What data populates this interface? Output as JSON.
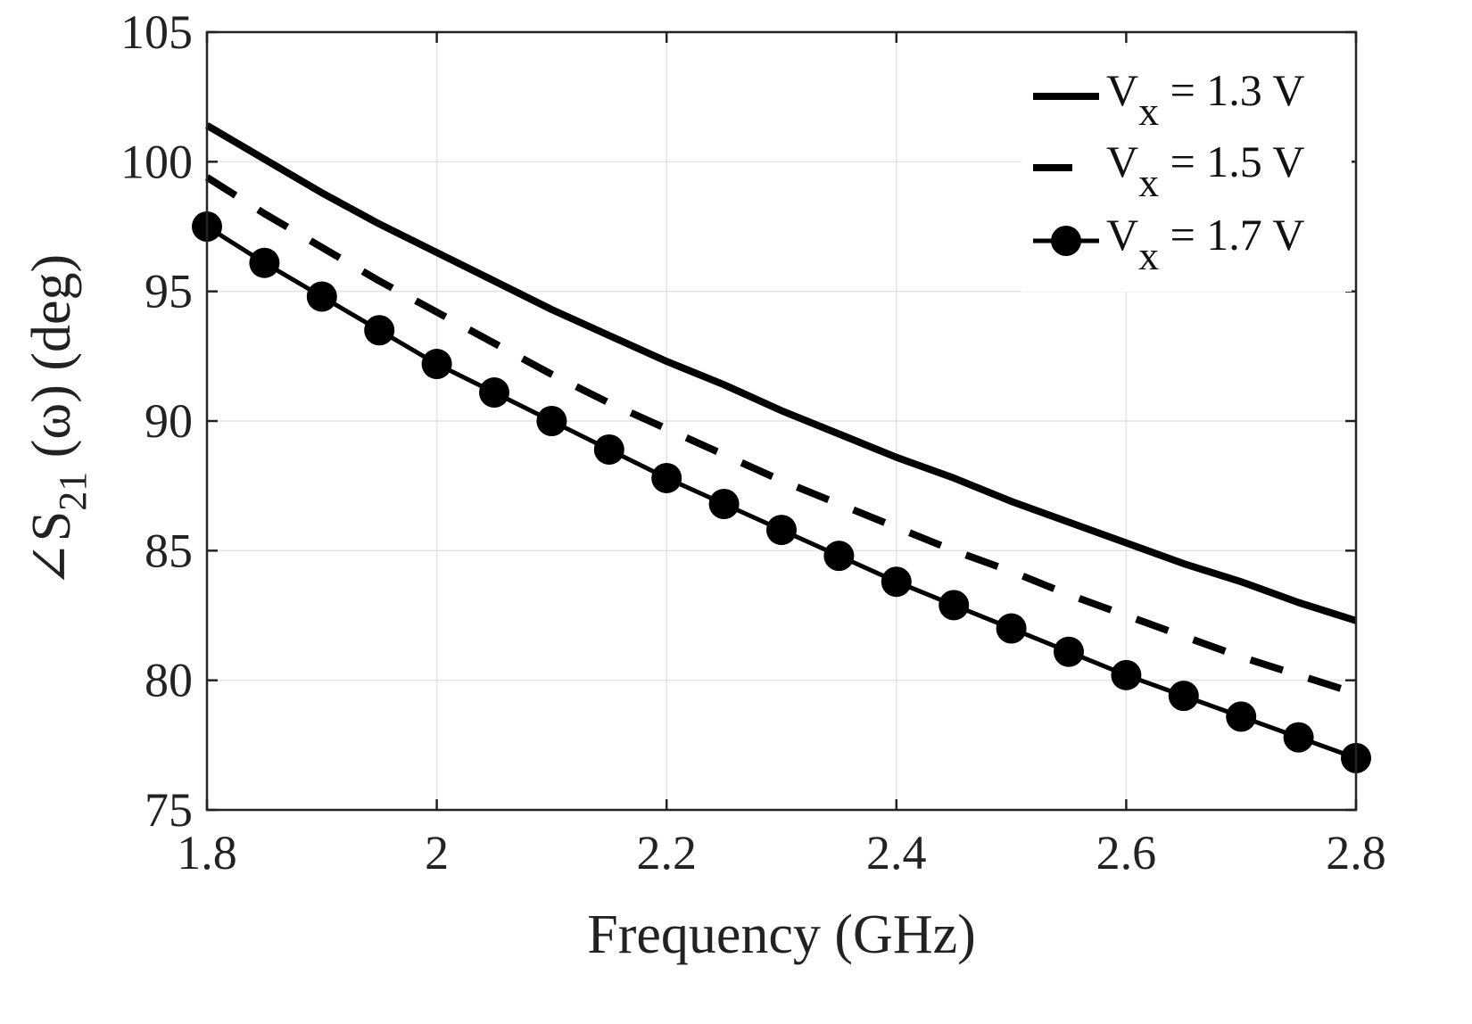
{
  "chart_data": {
    "type": "line",
    "title": "",
    "xlabel": "Frequency (GHz)",
    "ylabel": "∠S21 (ω) (deg)",
    "ylabel_parts": {
      "angle": "∠S",
      "subscript": "21",
      "rest": " (ω) (deg)"
    },
    "xlim": [
      1.8,
      2.8
    ],
    "ylim": [
      75,
      105
    ],
    "xticks": [
      1.8,
      2,
      2.2,
      2.4,
      2.6,
      2.8
    ],
    "xtick_labels": [
      "1.8",
      "2",
      "2.2",
      "2.4",
      "2.6",
      "2.8"
    ],
    "yticks": [
      75,
      80,
      85,
      90,
      95,
      100,
      105
    ],
    "ytick_labels": [
      "75",
      "80",
      "85",
      "90",
      "95",
      "100",
      "105"
    ],
    "grid": true,
    "legend_position": "top-right",
    "x": [
      1.8,
      1.85,
      1.9,
      1.95,
      2.0,
      2.05,
      2.1,
      2.15,
      2.2,
      2.25,
      2.3,
      2.35,
      2.4,
      2.45,
      2.5,
      2.55,
      2.6,
      2.65,
      2.7,
      2.75,
      2.8
    ],
    "series": [
      {
        "name": "Vx = 1.3 V",
        "legend": {
          "base": "V",
          "sub": "x",
          "rest": " = 1.3 V"
        },
        "style": "solid",
        "values": [
          101.4,
          100.1,
          98.8,
          97.6,
          96.5,
          95.4,
          94.3,
          93.3,
          92.3,
          91.4,
          90.4,
          89.5,
          88.6,
          87.8,
          86.9,
          86.1,
          85.3,
          84.5,
          83.8,
          83.0,
          82.3
        ]
      },
      {
        "name": "Vx = 1.5 V",
        "legend": {
          "base": "V",
          "sub": "x",
          "rest": " = 1.5 V"
        },
        "style": "dashed",
        "values": [
          99.4,
          98.0,
          96.7,
          95.4,
          94.2,
          93.0,
          91.8,
          90.7,
          89.7,
          88.7,
          87.7,
          86.8,
          85.9,
          85.0,
          84.2,
          83.3,
          82.5,
          81.7,
          80.9,
          80.2,
          79.5
        ]
      },
      {
        "name": "Vx = 1.7 V",
        "legend": {
          "base": "V",
          "sub": "x",
          "rest": " = 1.7 V"
        },
        "style": "solid-markers",
        "values": [
          97.5,
          96.1,
          94.8,
          93.5,
          92.2,
          91.1,
          90.0,
          88.9,
          87.8,
          86.8,
          85.8,
          84.8,
          83.8,
          82.9,
          82.0,
          81.1,
          80.2,
          79.4,
          78.6,
          77.8,
          77.0
        ]
      }
    ]
  },
  "colors": {
    "line": "#000000",
    "axis": "#222222",
    "grid": "#e3e3e3",
    "background": "#ffffff"
  }
}
